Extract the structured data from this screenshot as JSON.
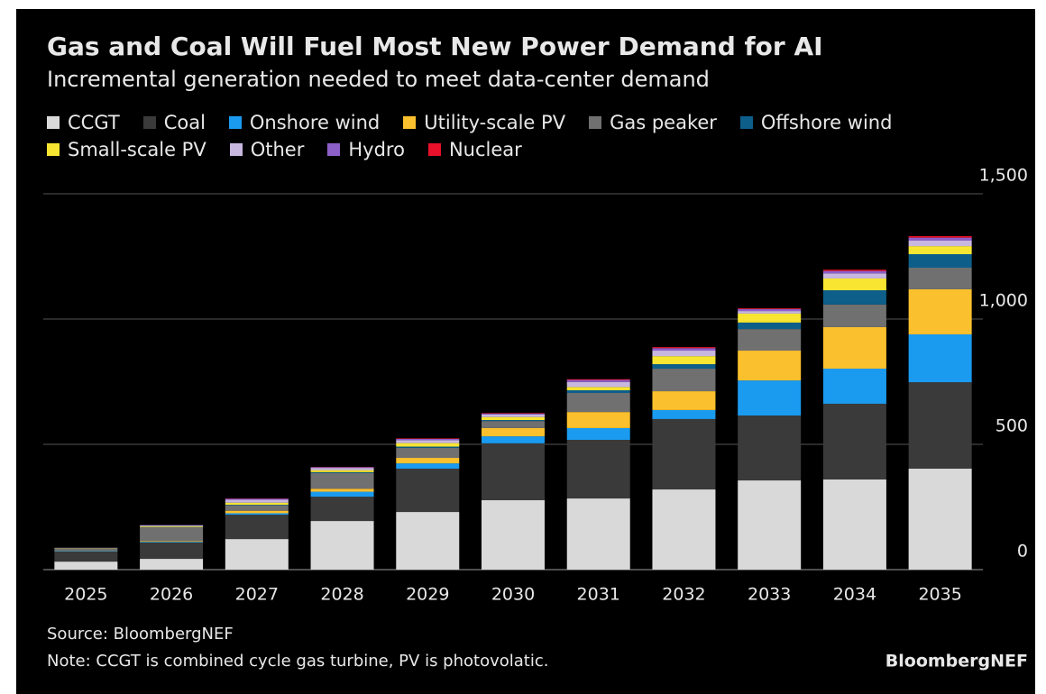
{
  "chart_data": {
    "type": "stacked_bar",
    "title": "Gas and Coal Will Fuel Most New Power Demand for AI",
    "subtitle": "Incremental generation needed to meet data-center demand",
    "categories": [
      "2025",
      "2026",
      "2027",
      "2028",
      "2029",
      "2030",
      "2031",
      "2032",
      "2033",
      "2034",
      "2035"
    ],
    "series": [
      {
        "name": "CCGT",
        "color": "#d9d9d9",
        "values": [
          32,
          43,
          122,
          194,
          230,
          277,
          284,
          320,
          356,
          360,
          403
        ]
      },
      {
        "name": "Coal",
        "color": "#3a3a3a",
        "values": [
          40,
          65,
          97,
          97,
          173,
          227,
          234,
          281,
          259,
          302,
          345
        ]
      },
      {
        "name": "Onshore wind",
        "color": "#1a9bf0",
        "values": [
          2,
          3,
          6,
          20,
          21,
          28,
          47,
          36,
          140,
          140,
          191
        ]
      },
      {
        "name": "Utility-scale PV",
        "color": "#fbc02d",
        "values": [
          1,
          3,
          10,
          12,
          22,
          33,
          64,
          75,
          119,
          166,
          180
        ]
      },
      {
        "name": "Gas peaker",
        "color": "#707070",
        "values": [
          10,
          55,
          22,
          62,
          40,
          28,
          76,
          90,
          86,
          90,
          86
        ]
      },
      {
        "name": "Offshore wind",
        "color": "#0d5f8a",
        "values": [
          0,
          1,
          2,
          4,
          5,
          4,
          11,
          18,
          26,
          57,
          54
        ]
      },
      {
        "name": "Small-scale PV",
        "color": "#f7e531",
        "values": [
          1,
          3,
          8,
          8,
          14,
          12,
          13,
          32,
          36,
          47,
          32
        ]
      },
      {
        "name": "Other",
        "color": "#c8b8e0",
        "values": [
          1,
          4,
          12,
          9,
          12,
          10,
          20,
          22,
          10,
          20,
          22
        ]
      },
      {
        "name": "Hydro",
        "color": "#8d5fc8",
        "values": [
          0,
          1,
          4,
          3,
          5,
          4,
          8,
          10,
          8,
          10,
          12
        ]
      },
      {
        "name": "Nuclear",
        "color": "#e8102a",
        "values": [
          0,
          0,
          1,
          1,
          2,
          2,
          3,
          4,
          3,
          5,
          6
        ]
      }
    ],
    "ylim": [
      0,
      1500
    ],
    "yticks": [
      0,
      500,
      {
        "value": 1000,
        "label": "1,000"
      },
      {
        "value": 1500,
        "label": "1,500"
      }
    ],
    "grid": true,
    "source": "Source: BloombergNEF",
    "note": "Note: CCGT is combined cycle gas turbine, PV is photovolatic.",
    "brand": "BloombergNEF"
  }
}
